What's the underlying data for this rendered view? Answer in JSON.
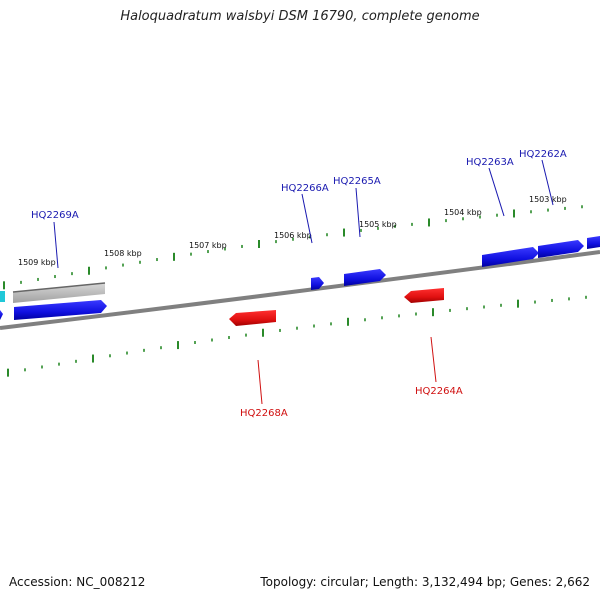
{
  "title": "Haloquadratum walsbyi DSM 16790, complete genome",
  "footer": {
    "accession": "Accession: NC_008212",
    "summary": "Topology: circular; Length: 3,132,494 bp; Genes: 2,662"
  },
  "colors": {
    "forward_gene": "#1010e0",
    "reverse_gene": "#e01010",
    "pseudo_gene": "#b8b8b8",
    "cyan_gene": "#20c8d8",
    "backbone": "#888888",
    "ticks": "#2a8a2a",
    "forward_label": "#1a1ab0",
    "reverse_label": "#d01010"
  },
  "ticks": {
    "major_labels": [
      "1509 kbp",
      "1508 kbp",
      "1507 kbp",
      "1506 kbp",
      "1505 kbp",
      "1504 kbp",
      "1503 kbp"
    ]
  },
  "genes": {
    "forward_labels": [
      "HQ2269A",
      "HQ2266A",
      "HQ2265A",
      "HQ2263A",
      "HQ2262A"
    ],
    "reverse_labels": [
      "HQ2268A",
      "HQ2264A"
    ]
  }
}
